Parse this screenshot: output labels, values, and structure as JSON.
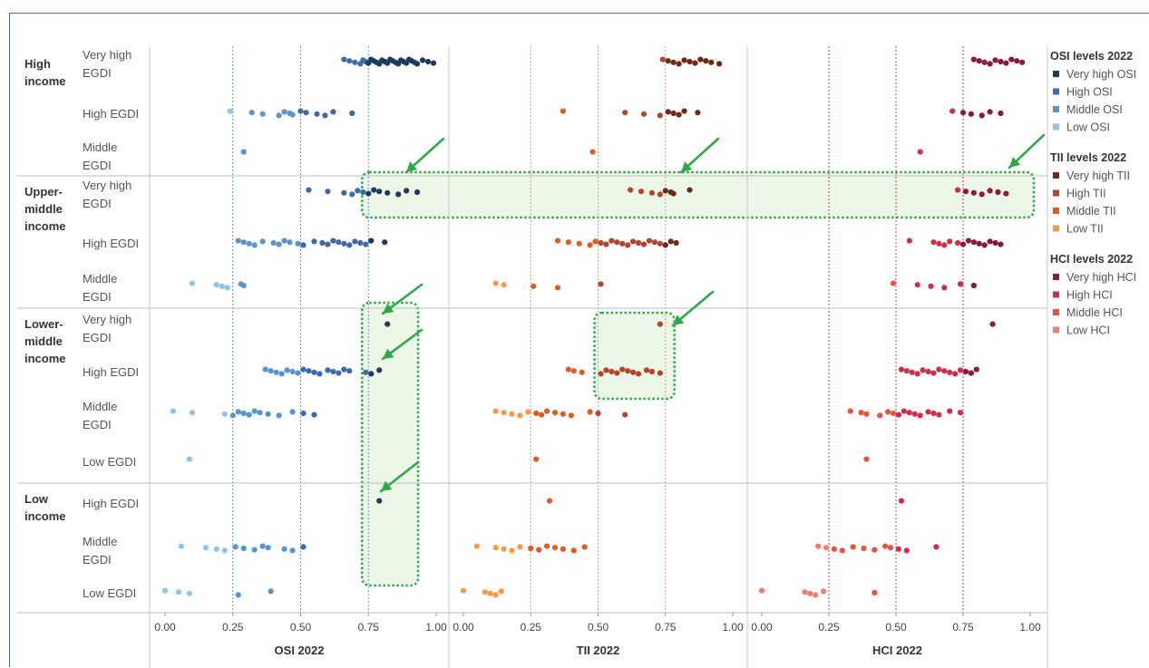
{
  "chart_data": {
    "type": "scatter",
    "panels": [
      {
        "axis_label": "OSI 2022",
        "range": [
          0,
          1
        ],
        "ticks": [
          "0.00",
          "0.25",
          "0.50",
          "0.75",
          "1.00"
        ]
      },
      {
        "axis_label": "TII 2022",
        "range": [
          0,
          1
        ],
        "ticks": [
          "0.00",
          "0.25",
          "0.50",
          "0.75",
          "1.00"
        ]
      },
      {
        "axis_label": "HCI 2022",
        "range": [
          0,
          1
        ],
        "ticks": [
          "0.00",
          "0.25",
          "0.50",
          "0.75",
          "1.00"
        ]
      }
    ],
    "income_groups": [
      {
        "label": "High income",
        "lines": [
          "High",
          "income"
        ],
        "egdi_levels": [
          {
            "label": "Very high EGDI",
            "lines": [
              "Very high",
              "EGDI"
            ]
          },
          {
            "label": "High EGDI",
            "lines": [
              "High EGDI"
            ]
          },
          {
            "label": "Middle EGDI",
            "lines": [
              "Middle",
              "EGDI"
            ]
          }
        ]
      },
      {
        "label": "Upper-middle income",
        "lines": [
          "Upper-",
          "middle",
          "income"
        ],
        "egdi_levels": [
          {
            "label": "Very high EGDI",
            "lines": [
              "Very high",
              "EGDI"
            ]
          },
          {
            "label": "High EGDI",
            "lines": [
              "High EGDI"
            ]
          },
          {
            "label": "Middle EGDI",
            "lines": [
              "Middle",
              "EGDI"
            ]
          }
        ]
      },
      {
        "label": "Lower-middle income",
        "lines": [
          "Lower-",
          "middle",
          "income"
        ],
        "egdi_levels": [
          {
            "label": "Very high EGDI",
            "lines": [
              "Very high",
              "EGDI"
            ]
          },
          {
            "label": "High EGDI",
            "lines": [
              "High EGDI"
            ]
          },
          {
            "label": "Middle EGDI",
            "lines": [
              "Middle",
              "EGDI"
            ]
          },
          {
            "label": "Low EGDI",
            "lines": [
              "Low EGDI"
            ]
          }
        ]
      },
      {
        "label": "Low income",
        "lines": [
          "Low",
          "income"
        ],
        "egdi_levels": [
          {
            "label": "High EGDI",
            "lines": [
              "High EGDI"
            ]
          },
          {
            "label": "Middle EGDI",
            "lines": [
              "Middle",
              "EGDI"
            ]
          },
          {
            "label": "Low EGDI",
            "lines": [
              "Low EGDI"
            ]
          }
        ]
      }
    ],
    "legend": {
      "placement": "right",
      "groups": [
        {
          "title": "OSI levels 2022",
          "items": [
            {
              "label": "Very high OSI",
              "color": "#1f3a5f"
            },
            {
              "label": "High OSI",
              "color": "#3d6aa8"
            },
            {
              "label": "Middle OSI",
              "color": "#5b94cc"
            },
            {
              "label": "Low OSI",
              "color": "#8ec3ea"
            }
          ]
        },
        {
          "title": "TII levels 2022",
          "items": [
            {
              "label": "Very high TII",
              "color": "#6e2a16"
            },
            {
              "label": "High TII",
              "color": "#b5442a"
            },
            {
              "label": "Middle TII",
              "color": "#e05a25"
            },
            {
              "label": "Low TII",
              "color": "#f59a4d"
            }
          ]
        },
        {
          "title": "HCI levels 2022",
          "items": [
            {
              "label": "Very high HCI",
              "color": "#8a1a36"
            },
            {
              "label": "High HCI",
              "color": "#d02d4c"
            },
            {
              "label": "Middle HCI",
              "color": "#e6543c"
            },
            {
              "label": "Low HCI",
              "color": "#f27d6e"
            }
          ]
        }
      ]
    },
    "series": [
      {
        "panel": 0,
        "group": 0,
        "level": 0,
        "x": [
          0.66,
          0.68,
          0.7,
          0.72,
          0.73,
          0.74,
          0.75,
          0.76,
          0.77,
          0.78,
          0.79,
          0.8,
          0.81,
          0.82,
          0.83,
          0.84,
          0.85,
          0.86,
          0.87,
          0.88,
          0.89,
          0.9,
          0.91,
          0.92,
          0.93,
          0.95,
          0.97,
          0.99
        ]
      },
      {
        "panel": 0,
        "group": 0,
        "level": 1,
        "x": [
          0.24,
          0.32,
          0.36,
          0.42,
          0.44,
          0.46,
          0.47,
          0.5,
          0.52,
          0.56,
          0.59,
          0.62,
          0.69
        ]
      },
      {
        "panel": 0,
        "group": 0,
        "level": 2,
        "x": [
          0.29
        ]
      },
      {
        "panel": 0,
        "group": 1,
        "level": 0,
        "x": [
          0.53,
          0.6,
          0.66,
          0.69,
          0.71,
          0.73,
          0.75,
          0.77,
          0.79,
          0.82,
          0.86,
          0.89,
          0.93
        ]
      },
      {
        "panel": 0,
        "group": 1,
        "level": 1,
        "x": [
          0.27,
          0.29,
          0.31,
          0.33,
          0.36,
          0.4,
          0.42,
          0.44,
          0.46,
          0.49,
          0.51,
          0.55,
          0.58,
          0.6,
          0.62,
          0.64,
          0.66,
          0.68,
          0.7,
          0.72,
          0.74,
          0.76,
          0.81
        ]
      },
      {
        "panel": 0,
        "group": 1,
        "level": 2,
        "x": [
          0.1,
          0.19,
          0.21,
          0.23,
          0.28,
          0.29
        ]
      },
      {
        "panel": 0,
        "group": 2,
        "level": 0,
        "x": [
          0.82
        ]
      },
      {
        "panel": 0,
        "group": 2,
        "level": 1,
        "x": [
          0.37,
          0.39,
          0.41,
          0.43,
          0.45,
          0.47,
          0.49,
          0.51,
          0.53,
          0.55,
          0.57,
          0.6,
          0.62,
          0.64,
          0.66,
          0.68,
          0.74,
          0.76,
          0.79
        ]
      },
      {
        "panel": 0,
        "group": 2,
        "level": 2,
        "x": [
          0.03,
          0.1,
          0.22,
          0.25,
          0.27,
          0.29,
          0.31,
          0.33,
          0.35,
          0.38,
          0.42,
          0.47,
          0.51,
          0.55
        ]
      },
      {
        "panel": 0,
        "group": 2,
        "level": 3,
        "x": [
          0.09
        ]
      },
      {
        "panel": 0,
        "group": 3,
        "level": 0,
        "x": [
          0.79
        ]
      },
      {
        "panel": 0,
        "group": 3,
        "level": 1,
        "x": [
          0.06,
          0.15,
          0.19,
          0.22,
          0.26,
          0.29,
          0.33,
          0.36,
          0.38,
          0.44,
          0.47,
          0.51
        ]
      },
      {
        "panel": 0,
        "group": 3,
        "level": 2,
        "x": [
          0.0,
          0.05,
          0.09,
          0.27,
          0.39
        ]
      },
      {
        "panel": 1,
        "group": 0,
        "level": 0,
        "x": [
          0.74,
          0.76,
          0.78,
          0.8,
          0.82,
          0.84,
          0.86,
          0.88,
          0.9,
          0.92,
          0.95
        ]
      },
      {
        "panel": 1,
        "group": 0,
        "level": 1,
        "x": [
          0.37,
          0.6,
          0.67,
          0.73,
          0.76,
          0.78,
          0.8,
          0.82,
          0.87
        ]
      },
      {
        "panel": 1,
        "group": 0,
        "level": 2,
        "x": [
          0.48
        ]
      },
      {
        "panel": 1,
        "group": 1,
        "level": 0,
        "x": [
          0.62,
          0.66,
          0.7,
          0.73,
          0.75,
          0.77,
          0.78,
          0.84
        ]
      },
      {
        "panel": 1,
        "group": 1,
        "level": 1,
        "x": [
          0.35,
          0.39,
          0.43,
          0.47,
          0.49,
          0.51,
          0.53,
          0.55,
          0.57,
          0.59,
          0.61,
          0.63,
          0.65,
          0.67,
          0.69,
          0.71,
          0.73,
          0.75,
          0.77,
          0.79
        ]
      },
      {
        "panel": 1,
        "group": 1,
        "level": 2,
        "x": [
          0.12,
          0.15,
          0.26,
          0.35,
          0.51
        ]
      },
      {
        "panel": 1,
        "group": 2,
        "level": 0,
        "x": [
          0.73
        ]
      },
      {
        "panel": 1,
        "group": 2,
        "level": 1,
        "x": [
          0.39,
          0.41,
          0.44,
          0.51,
          0.53,
          0.55,
          0.57,
          0.59,
          0.61,
          0.63,
          0.65,
          0.68,
          0.7,
          0.73
        ]
      },
      {
        "panel": 1,
        "group": 2,
        "level": 2,
        "x": [
          0.12,
          0.15,
          0.18,
          0.21,
          0.24,
          0.27,
          0.29,
          0.31,
          0.34,
          0.37,
          0.4,
          0.47,
          0.5,
          0.6
        ]
      },
      {
        "panel": 1,
        "group": 2,
        "level": 3,
        "x": [
          0.27
        ]
      },
      {
        "panel": 1,
        "group": 3,
        "level": 0,
        "x": [
          0.32
        ]
      },
      {
        "panel": 1,
        "group": 3,
        "level": 1,
        "x": [
          0.05,
          0.12,
          0.15,
          0.18,
          0.21,
          0.25,
          0.28,
          0.31,
          0.34,
          0.37,
          0.41,
          0.45
        ]
      },
      {
        "panel": 1,
        "group": 3,
        "level": 2,
        "x": [
          0.0,
          0.08,
          0.1,
          0.12,
          0.14
        ]
      },
      {
        "panel": 2,
        "group": 0,
        "level": 0,
        "x": [
          0.79,
          0.81,
          0.83,
          0.85,
          0.87,
          0.89,
          0.91,
          0.93,
          0.95,
          0.97
        ]
      },
      {
        "panel": 2,
        "group": 0,
        "level": 1,
        "x": [
          0.71,
          0.75,
          0.78,
          0.82,
          0.85,
          0.89
        ]
      },
      {
        "panel": 2,
        "group": 0,
        "level": 2,
        "x": [
          0.59
        ]
      },
      {
        "panel": 2,
        "group": 1,
        "level": 0,
        "x": [
          0.73,
          0.76,
          0.79,
          0.82,
          0.85,
          0.88,
          0.91
        ]
      },
      {
        "panel": 2,
        "group": 1,
        "level": 1,
        "x": [
          0.55,
          0.64,
          0.66,
          0.68,
          0.7,
          0.73,
          0.75,
          0.77,
          0.79,
          0.81,
          0.83,
          0.85,
          0.87,
          0.89
        ]
      },
      {
        "panel": 2,
        "group": 1,
        "level": 2,
        "x": [
          0.49,
          0.58,
          0.63,
          0.68,
          0.74,
          0.79
        ]
      },
      {
        "panel": 2,
        "group": 2,
        "level": 0,
        "x": [
          0.86
        ]
      },
      {
        "panel": 2,
        "group": 2,
        "level": 1,
        "x": [
          0.52,
          0.54,
          0.56,
          0.58,
          0.6,
          0.62,
          0.64,
          0.66,
          0.68,
          0.7,
          0.72,
          0.74,
          0.76,
          0.78,
          0.8
        ]
      },
      {
        "panel": 2,
        "group": 2,
        "level": 2,
        "x": [
          0.33,
          0.37,
          0.39,
          0.44,
          0.47,
          0.49,
          0.51,
          0.53,
          0.55,
          0.57,
          0.59,
          0.62,
          0.64,
          0.66,
          0.7,
          0.74
        ]
      },
      {
        "panel": 2,
        "group": 2,
        "level": 3,
        "x": [
          0.39
        ]
      },
      {
        "panel": 2,
        "group": 3,
        "level": 0,
        "x": [
          0.52
        ]
      },
      {
        "panel": 2,
        "group": 3,
        "level": 1,
        "x": [
          0.21,
          0.24,
          0.27,
          0.3,
          0.34,
          0.38,
          0.42,
          0.46,
          0.48,
          0.51,
          0.54,
          0.65
        ]
      },
      {
        "panel": 2,
        "group": 3,
        "level": 2,
        "x": [
          0.0,
          0.16,
          0.18,
          0.2,
          0.23,
          0.42
        ]
      }
    ],
    "highlights": [
      {
        "panel_start": 0,
        "panel_end": 2,
        "x_start": 0.74,
        "x_end": 1.0,
        "group": 1,
        "level": 0
      },
      {
        "panel_start": 0,
        "panel_end": 0,
        "x_start": 0.74,
        "x_end": 0.92,
        "group_start": 2,
        "group_end": 3
      },
      {
        "panel_start": 1,
        "panel_end": 1,
        "x_start": 0.5,
        "x_end": 0.77,
        "group": 2,
        "level_start": 0,
        "level_end": 1
      }
    ]
  }
}
